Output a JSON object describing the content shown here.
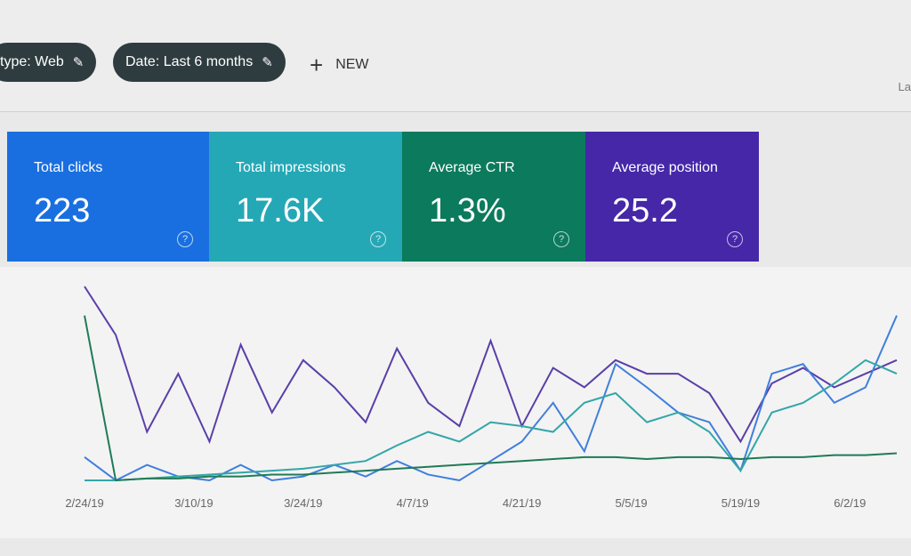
{
  "filters": {
    "chips": [
      {
        "label": "type: Web",
        "icon": "pencil-icon"
      },
      {
        "label": "Date: Last 6 months",
        "icon": "pencil-icon"
      }
    ],
    "new_label": "NEW",
    "truncated_label": "La"
  },
  "cards": [
    {
      "label": "Total clicks",
      "value": "223",
      "color": "#1a6fe0"
    },
    {
      "label": "Total impressions",
      "value": "17.6K",
      "color": "#25a8b5"
    },
    {
      "label": "Average CTR",
      "value": "1.3%",
      "color": "#0c7a5c"
    },
    {
      "label": "Average position",
      "value": "25.2",
      "color": "#4527a8"
    }
  ],
  "chart_data": {
    "type": "line",
    "x": [
      "2/24",
      "2/28",
      "3/4",
      "3/8",
      "3/12",
      "3/16",
      "3/20",
      "3/24",
      "3/28",
      "4/1",
      "4/5",
      "4/9",
      "4/13",
      "4/17",
      "4/21",
      "4/25",
      "4/29",
      "5/3",
      "5/7",
      "5/11",
      "5/15",
      "5/19",
      "5/23",
      "5/27",
      "5/31",
      "6/4",
      "6/8"
    ],
    "x_tick_labels": [
      "2/24/19",
      "3/10/19",
      "3/24/19",
      "4/7/19",
      "4/21/19",
      "5/5/19",
      "5/19/19",
      "6/2/19"
    ],
    "series": [
      {
        "color": "#5a3fa8",
        "values": [
          100,
          75,
          25,
          55,
          20,
          70,
          35,
          62,
          48,
          30,
          68,
          40,
          28,
          72,
          28,
          58,
          48,
          62,
          55,
          55,
          45,
          20,
          50,
          58,
          48,
          55,
          62
        ]
      },
      {
        "color": "#3f7fdc",
        "values": [
          12,
          0,
          8,
          2,
          0,
          8,
          0,
          2,
          8,
          2,
          10,
          3,
          0,
          10,
          20,
          40,
          15,
          60,
          48,
          35,
          30,
          5,
          55,
          60,
          40,
          48,
          85
        ]
      },
      {
        "color": "#33a6a8",
        "values": [
          0,
          0,
          1,
          2,
          3,
          4,
          5,
          6,
          8,
          10,
          18,
          25,
          20,
          30,
          28,
          25,
          40,
          45,
          30,
          35,
          25,
          5,
          35,
          40,
          50,
          62,
          55
        ]
      },
      {
        "color": "#207a56",
        "values": [
          85,
          0,
          1,
          1,
          2,
          2,
          3,
          3,
          4,
          5,
          6,
          7,
          8,
          9,
          10,
          11,
          12,
          12,
          11,
          12,
          12,
          11,
          12,
          12,
          13,
          13,
          14
        ]
      }
    ],
    "grid": false,
    "legend": "none"
  }
}
